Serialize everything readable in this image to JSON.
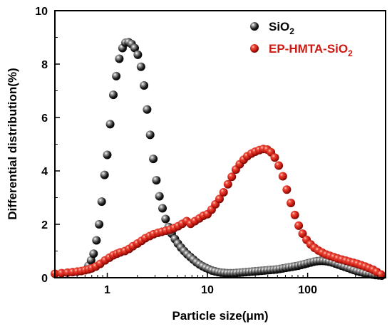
{
  "chart_data": {
    "type": "scatter",
    "xlabel": "Particle size(μm)",
    "ylabel": "Differential distribution(%)",
    "xscale": "log",
    "xlim": [
      0.3,
      600
    ],
    "ylim": [
      0,
      10
    ],
    "grid": false,
    "legend_position": "top-right",
    "x_ticks": [
      {
        "value": 1,
        "label": "1"
      },
      {
        "value": 10,
        "label": "10"
      },
      {
        "value": 100,
        "label": "100"
      }
    ],
    "y_ticks": [
      {
        "value": 0,
        "label": "0"
      },
      {
        "value": 2,
        "label": "2"
      },
      {
        "value": 4,
        "label": "4"
      },
      {
        "value": 6,
        "label": "6"
      },
      {
        "value": 8,
        "label": "8"
      },
      {
        "value": 10,
        "label": "10"
      }
    ],
    "series": [
      {
        "name": "SiO",
        "name_subscript": "2",
        "color": "#1a1a1a",
        "x": [
          0.65,
          0.69,
          0.73,
          0.78,
          0.83,
          0.88,
          0.94,
          1.0,
          1.07,
          1.15,
          1.23,
          1.32,
          1.42,
          1.52,
          1.63,
          1.75,
          1.88,
          2.02,
          2.17,
          2.33,
          2.5,
          2.68,
          2.88,
          3.09,
          3.32,
          3.56,
          3.82,
          4.1,
          4.4,
          4.73,
          5.07,
          5.45,
          5.85,
          6.28,
          6.74,
          7.23,
          7.76,
          8.33,
          8.95,
          9.6,
          10.3,
          11.1,
          11.9,
          12.8,
          13.7,
          14.7,
          15.8,
          17.0,
          18.2,
          19.5,
          21.0,
          22.5,
          24.2,
          26.0,
          27.9,
          29.9,
          32.1,
          34.5,
          37.0,
          39.7,
          42.6,
          45.8,
          49.1,
          52.7,
          56.6,
          60.8,
          65.2,
          70.0,
          75.2,
          80.7,
          86.6,
          93.0,
          99.8,
          107.2,
          115.0,
          123.5,
          132.6,
          142.3,
          152.8,
          164.0,
          176.0,
          189.0,
          203.0,
          218.0,
          234.0,
          251.0,
          269.0,
          289.0,
          310.0,
          333.0,
          358.0,
          384.0,
          412.0,
          442.0,
          475.0,
          510.0,
          548.0
        ],
        "y": [
          0.45,
          0.65,
          0.9,
          1.4,
          2.0,
          2.85,
          3.85,
          4.6,
          5.75,
          6.85,
          7.55,
          8.2,
          8.6,
          8.8,
          8.82,
          8.75,
          8.6,
          8.35,
          7.9,
          7.2,
          6.3,
          5.35,
          4.45,
          3.65,
          3.05,
          2.6,
          2.2,
          1.9,
          1.65,
          1.45,
          1.28,
          1.13,
          1.0,
          0.88,
          0.78,
          0.68,
          0.58,
          0.5,
          0.43,
          0.37,
          0.32,
          0.27,
          0.24,
          0.21,
          0.19,
          0.18,
          0.17,
          0.17,
          0.17,
          0.18,
          0.19,
          0.2,
          0.21,
          0.22,
          0.23,
          0.24,
          0.25,
          0.26,
          0.27,
          0.28,
          0.29,
          0.3,
          0.31,
          0.33,
          0.35,
          0.37,
          0.39,
          0.41,
          0.43,
          0.45,
          0.48,
          0.51,
          0.54,
          0.57,
          0.6,
          0.62,
          0.63,
          0.63,
          0.62,
          0.6,
          0.57,
          0.53,
          0.49,
          0.45,
          0.41,
          0.37,
          0.33,
          0.29,
          0.25,
          0.22,
          0.19,
          0.16,
          0.14,
          0.12,
          0.1,
          0.09,
          0.08
        ]
      },
      {
        "name": "EP-HMTA-SiO",
        "name_subscript": "2",
        "color": "#cc1a12",
        "x": [
          0.3,
          0.35,
          0.4,
          0.45,
          0.5,
          0.55,
          0.6,
          0.65,
          0.7,
          0.77,
          0.85,
          0.95,
          1.05,
          1.15,
          1.25,
          1.35,
          1.5,
          1.65,
          1.8,
          2.0,
          2.2,
          2.4,
          2.65,
          2.9,
          3.2,
          3.5,
          3.85,
          4.25,
          4.65,
          5.1,
          5.6,
          6.2,
          6.8,
          7.5,
          8.3,
          9.1,
          10.0,
          11.0,
          12.0,
          13.2,
          14.5,
          16.0,
          17.5,
          19.2,
          21.0,
          23.0,
          25.0,
          27.5,
          30.0,
          33.0,
          36.0,
          39.5,
          43.0,
          47.0,
          51.5,
          56.5,
          62.0,
          68.0,
          74.5,
          81.5,
          89.0,
          97.5,
          107.0,
          117.0,
          128.0,
          140.0,
          153.0,
          167.0,
          183.0,
          200.0,
          219.0,
          240.0,
          262.0,
          287.0,
          314.0,
          343.0,
          375.0,
          410.0,
          450.0,
          490.0,
          540.0
        ],
        "y": [
          0.15,
          0.17,
          0.19,
          0.21,
          0.23,
          0.25,
          0.28,
          0.31,
          0.35,
          0.42,
          0.52,
          0.65,
          0.75,
          0.84,
          0.9,
          0.95,
          1.0,
          1.08,
          1.18,
          1.28,
          1.38,
          1.48,
          1.56,
          1.63,
          1.68,
          1.72,
          1.76,
          1.8,
          1.86,
          1.93,
          2.02,
          2.12,
          2.02,
          2.12,
          2.22,
          2.32,
          2.38,
          2.55,
          2.75,
          2.95,
          3.2,
          3.5,
          3.78,
          4.05,
          4.25,
          4.42,
          4.55,
          4.65,
          4.72,
          4.78,
          4.82,
          4.8,
          4.7,
          4.5,
          4.2,
          3.8,
          3.3,
          2.8,
          2.35,
          1.95,
          1.65,
          1.42,
          1.25,
          1.12,
          1.02,
          0.94,
          0.87,
          0.82,
          0.77,
          0.72,
          0.68,
          0.64,
          0.6,
          0.56,
          0.52,
          0.47,
          0.42,
          0.36,
          0.3,
          0.22,
          0.12
        ]
      }
    ]
  }
}
